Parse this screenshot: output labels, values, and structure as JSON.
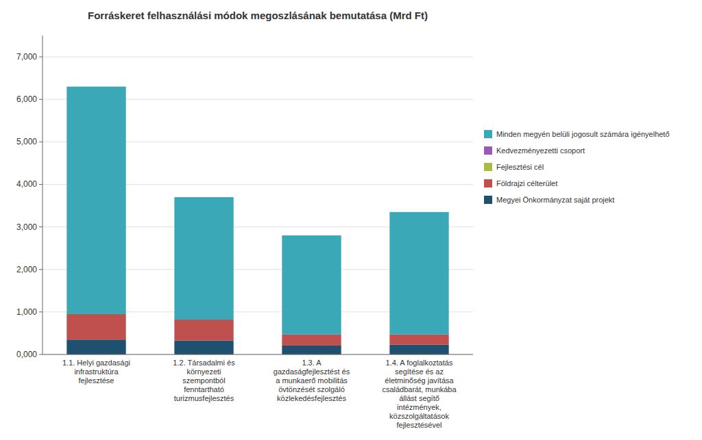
{
  "chart_data": {
    "type": "bar",
    "stacked": true,
    "title": "Forráskeret felhasználási módok megoszlásának bemutatása (Mrd Ft)",
    "categories": [
      "1.1. Helyi gazdasági\ninfrastruktúra\nfejlesztése",
      "1.2. Társadalmi és\nkörnyezeti\nszempontból\nfenntartható\nturizmusfejlesztés",
      "1.3. A\ngazdaságfejlesztést és\na munkaerő mobilitás\növtönzését szolgáló\nközlekedésfejlesztés",
      "1.4. A foglalkoztatás\nsegítése és az\néletminőség javítása\ncsaládbarát, munkába\nállást segítő\nintézmények,\nközszolgáltatások\nfejlesztésével"
    ],
    "series": [
      {
        "name": "Megyei Önkormányzat saját projekt",
        "color": "#205070",
        "values": [
          350,
          330,
          210,
          230
        ]
      },
      {
        "name": "Földrajzi célterület",
        "color": "#C0504D",
        "values": [
          600,
          490,
          260,
          240
        ]
      },
      {
        "name": "Fejlesztési cél",
        "color": "#AABC44",
        "values": [
          0,
          0,
          0,
          0
        ]
      },
      {
        "name": "Kedvezményezetti csoport",
        "color": "#9B59B6",
        "values": [
          0,
          0,
          0,
          0
        ]
      },
      {
        "name": "Minden megyén belüli jogosult számára igényelhető",
        "color": "#3BA8B8",
        "values": [
          5350,
          2880,
          2330,
          2880
        ]
      }
    ],
    "ylim": [
      0,
      7500
    ],
    "yticks": [
      {
        "value": 0,
        "label": "0,000"
      },
      {
        "value": 1000,
        "label": "1,000"
      },
      {
        "value": 2000,
        "label": "2,000"
      },
      {
        "value": 3000,
        "label": "3,000"
      },
      {
        "value": 4000,
        "label": "4,000"
      },
      {
        "value": 5000,
        "label": "5,000"
      },
      {
        "value": 6000,
        "label": "6,000"
      },
      {
        "value": 7000,
        "label": "7,000"
      }
    ],
    "grid": true,
    "legend": "right"
  }
}
